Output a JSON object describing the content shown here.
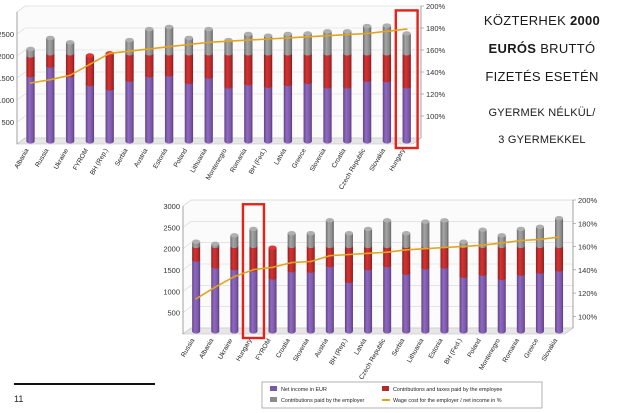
{
  "side_title": {
    "line1a": "KÖZTERHEK",
    "line1b": "2000",
    "line2a": "EURÓS",
    "line2b": "BRUTTÓ",
    "line3": "FIZETÉS ESETÉN",
    "line4": "GYERMEK NÉLKÜL/",
    "line5": "3 GYERMEKKEL"
  },
  "page_number": "11",
  "legend": {
    "net": "Net income in EUR",
    "contrib_emp": "Contributions and taxes paid by the employee",
    "contrib_er": "Contributions paid by the employer",
    "wage_cost": "Wage cost for the employer / net income in %"
  },
  "colors": {
    "net": "#7b58a6",
    "contrib_emp": "#b52a2a",
    "contrib_er": "#8c8c8c",
    "wage_cost": "#e2a41e",
    "highlight": "#e8201a"
  },
  "chart_data": [
    {
      "type": "bar",
      "subtitle": "without children",
      "categories": [
        "Albania",
        "Russia",
        "Ukraine",
        "FYROM",
        "BH (Rep.)",
        "Serbia",
        "Austria",
        "Estonia",
        "Poland",
        "Lithuania",
        "Montenegro",
        "Romania",
        "BH (Fed.)",
        "Latvia",
        "Greece",
        "Slovenia",
        "Croatia",
        "Czech Republic",
        "Slovakia",
        "Hungary"
      ],
      "series": [
        {
          "name": "Net income in EUR",
          "values": [
            1500,
            1720,
            1500,
            1300,
            1200,
            1400,
            1500,
            1520,
            1350,
            1470,
            1250,
            1320,
            1260,
            1300,
            1350,
            1250,
            1250,
            1400,
            1390,
            1250
          ]
        },
        {
          "name": "Contributions and taxes paid by the employee",
          "values": [
            450,
            280,
            500,
            650,
            800,
            600,
            500,
            480,
            650,
            530,
            750,
            680,
            740,
            700,
            650,
            750,
            750,
            600,
            610,
            750
          ]
        },
        {
          "name": "Contributions paid by the employer",
          "values": [
            150,
            350,
            250,
            0,
            0,
            300,
            550,
            600,
            350,
            550,
            300,
            440,
            400,
            440,
            450,
            500,
            500,
            620,
            630,
            450
          ]
        },
        {
          "name": "Wage cost for the employer / net income in %",
          "axis": "right",
          "values": [
            133,
            136,
            140,
            150,
            160,
            162,
            164,
            166,
            168,
            170,
            171,
            172,
            173,
            174,
            175,
            176,
            177,
            178,
            180,
            182
          ]
        }
      ],
      "highlight": "Hungary",
      "ylim": [
        0,
        3000
      ],
      "y_ticks": [
        500,
        1000,
        1500,
        2000,
        2500
      ],
      "y2lim": [
        80,
        200
      ],
      "y2_ticks": [
        "100%",
        "120%",
        "140%",
        "160%",
        "180%",
        "200%"
      ]
    },
    {
      "type": "bar",
      "subtitle": "with three children",
      "categories": [
        "Russia",
        "Albania",
        "Ukraine",
        "Hungary",
        "FYROM",
        "Croatia",
        "Slovenia",
        "Austria",
        "BH (Rep.)",
        "Latvia",
        "Czech Republic",
        "Serbia",
        "Lithuania",
        "Estonia",
        "BH (Fed.)",
        "Poland",
        "Montenegro",
        "Romania",
        "Greece",
        "Slovakia"
      ],
      "series": [
        {
          "name": "Net income in EUR",
          "values": [
            1680,
            1520,
            1480,
            1450,
            1260,
            1430,
            1420,
            1550,
            1180,
            1480,
            1550,
            1370,
            1500,
            1520,
            1300,
            1350,
            1250,
            1350,
            1400,
            1450
          ]
        },
        {
          "name": "Contributions and taxes paid by the employee",
          "values": [
            320,
            480,
            520,
            550,
            700,
            570,
            580,
            450,
            820,
            520,
            450,
            630,
            500,
            480,
            700,
            650,
            750,
            650,
            600,
            550
          ]
        },
        {
          "name": "Contributions paid by the employer",
          "values": [
            100,
            50,
            250,
            400,
            0,
            300,
            300,
            600,
            300,
            400,
            600,
            300,
            570,
            600,
            100,
            380,
            250,
            400,
            450,
            650
          ]
        },
        {
          "name": "Wage cost for the employer / net income in %",
          "axis": "right",
          "values": [
            118,
            128,
            137,
            143,
            145,
            149,
            150,
            155,
            156,
            157,
            158,
            160,
            161,
            162,
            163,
            164,
            166,
            168,
            169,
            171
          ]
        }
      ],
      "highlight": "Hungary",
      "ylim": [
        0,
        3000
      ],
      "y_ticks": [
        500,
        1000,
        1500,
        2000,
        2500,
        3000
      ],
      "y2lim": [
        90,
        200
      ],
      "y2_ticks": [
        "100%",
        "120%",
        "140%",
        "160%",
        "180%",
        "200%"
      ]
    }
  ]
}
